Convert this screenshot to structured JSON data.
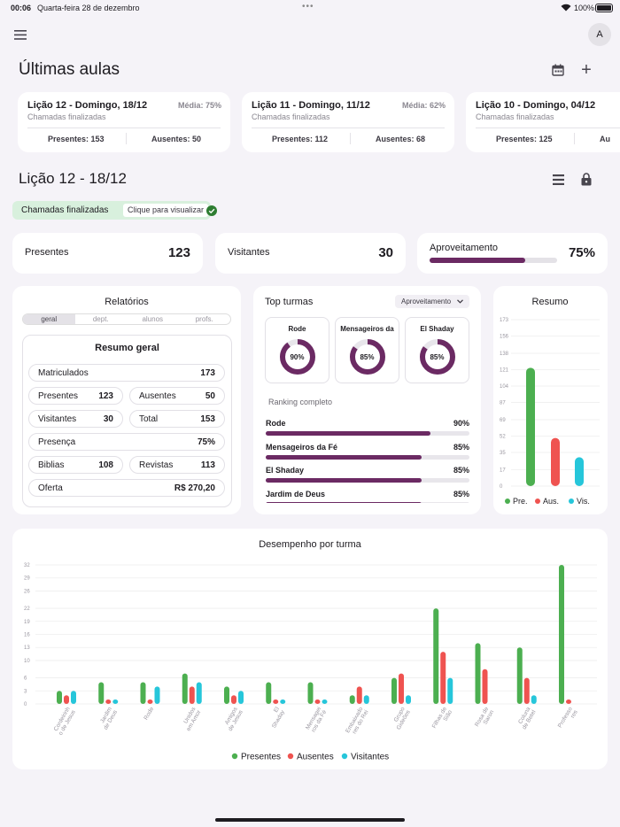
{
  "status": {
    "time": "00:06",
    "date": "Quarta-feira 28 de dezembro",
    "battery": "100%"
  },
  "header": {
    "avatar": "A"
  },
  "ultimas": {
    "title": "Últimas aulas",
    "cards": [
      {
        "title": "Lição 12 - Domingo, 18/12",
        "media": "Média: 75%",
        "status": "Chamadas finalizadas",
        "presentes": "Presentes: 153",
        "ausentes": "Ausentes: 50"
      },
      {
        "title": "Lição 11 - Domingo, 11/12",
        "media": "Média: 62%",
        "status": "Chamadas finalizadas",
        "presentes": "Presentes: 112",
        "ausentes": "Ausentes: 68"
      },
      {
        "title": "Lição 10 - Domingo, 04/12",
        "media": "",
        "status": "Chamadas finalizadas",
        "presentes": "Presentes: 125",
        "ausentes": "Au"
      }
    ]
  },
  "licao": {
    "title": "Lição 12 - 18/12",
    "chip_label": "Chamadas finalizadas",
    "chip_action": "Clique para visualizar"
  },
  "stats": {
    "presentes_label": "Presentes",
    "presentes_value": "123",
    "visitantes_label": "Visitantes",
    "visitantes_value": "30",
    "aproveitamento_label": "Aproveitamento",
    "aproveitamento_value": "75%",
    "aproveitamento_fraction": 0.75
  },
  "relatorios": {
    "title": "Relatórios",
    "tabs": [
      "geral",
      "dept.",
      "alunos",
      "profs."
    ],
    "resumo_title": "Resumo geral",
    "matriculados_label": "Matriculados",
    "matriculados_value": "173",
    "presentes_label": "Presentes",
    "presentes_value": "123",
    "ausentes_label": "Ausentes",
    "ausentes_value": "50",
    "visitantes_label": "Visitantes",
    "visitantes_value": "30",
    "total_label": "Total",
    "total_value": "153",
    "presenca_label": "Presença",
    "presenca_value": "75%",
    "biblias_label": "Biblias",
    "biblias_value": "108",
    "revistas_label": "Revistas",
    "revistas_value": "113",
    "oferta_label": "Oferta",
    "oferta_value": "R$ 270,20"
  },
  "top": {
    "title": "Top turmas",
    "dropdown": "Aproveitamento",
    "ranking_title": "Ranking completo",
    "donuts": [
      {
        "name": "Rode",
        "pct": "90%",
        "value": 0.9
      },
      {
        "name": "Mensageiros da",
        "pct": "85%",
        "value": 0.85
      },
      {
        "name": "El Shaday",
        "pct": "85%",
        "value": 0.85
      }
    ],
    "ranking": [
      {
        "name": "Rode",
        "pct": "90%",
        "value": 0.9
      },
      {
        "name": "Mensageiros da Fé",
        "pct": "85%",
        "value": 0.85
      },
      {
        "name": "El Shaday",
        "pct": "85%",
        "value": 0.85
      },
      {
        "name": "Jardim de Deus",
        "pct": "85%",
        "value": 0.85
      }
    ]
  },
  "colors": {
    "presentes": "#4caf50",
    "ausentes": "#ef5350",
    "visitantes": "#26c6da",
    "accent": "#6b2a63"
  },
  "chart_data": [
    {
      "type": "bar",
      "title": "Resumo",
      "categories": [
        "Pre.",
        "Aus.",
        "Vis."
      ],
      "values": [
        123,
        50,
        30
      ],
      "ylim": [
        0,
        173
      ],
      "yticks": [
        0,
        17,
        35,
        52,
        69,
        87,
        104,
        121,
        138,
        156,
        173
      ],
      "legend": [
        "Pre.",
        "Aus.",
        "Vis."
      ],
      "colors": [
        "#4caf50",
        "#ef5350",
        "#26c6da"
      ]
    },
    {
      "type": "bar",
      "title": "Desempenho por turma",
      "categories": [
        "Cordeirinhos de Jesus",
        "Jardim de Deus",
        "Rode",
        "Unidos em Amor",
        "Amigos de Jesus",
        "El Shaday",
        "Mensageiros da Fé",
        "Embaixadores do Rei",
        "Grupo Gideões",
        "Filhas de Sião",
        "Rosa de Saron",
        "Coluna de Betel",
        "Professores"
      ],
      "tick_labels": [
        "Cordeirinh\no de Jesus",
        "Jardim\nde Deus",
        "Rode",
        "Unidos\nem Amor",
        "Amigos\nde Jesus",
        "El\nShaday",
        "Mensagei\nros da Fé",
        "Embaixado\nres do Rei",
        "Grupo\nGideões",
        "Filhas de\nSião",
        "Rosa de\nSaron",
        "Coluna\nde Betel",
        "Professo\nres"
      ],
      "series": [
        {
          "name": "Presentes",
          "values": [
            3,
            5,
            5,
            7,
            4,
            5,
            5,
            2,
            6,
            22,
            14,
            13,
            32
          ]
        },
        {
          "name": "Ausentes",
          "values": [
            2,
            1,
            1,
            4,
            2,
            1,
            1,
            4,
            7,
            12,
            8,
            6,
            1
          ]
        },
        {
          "name": "Visitantes",
          "values": [
            3,
            1,
            4,
            5,
            3,
            1,
            1,
            2,
            2,
            6,
            0,
            2,
            0
          ]
        }
      ],
      "ylim": [
        0,
        32
      ],
      "yticks": [
        0,
        3,
        6,
        10,
        13,
        16,
        19,
        22,
        26,
        29,
        32
      ],
      "legend": [
        "Presentes",
        "Ausentes",
        "Visitantes"
      ]
    }
  ]
}
